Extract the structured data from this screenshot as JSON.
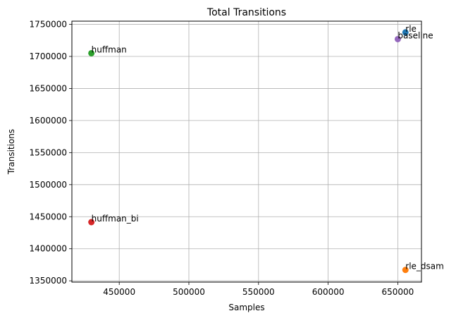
{
  "chart_data": {
    "type": "scatter",
    "title": "Total Transitions",
    "xlabel": "Samples",
    "ylabel": "Transitions",
    "xlim": [
      416000,
      667000
    ],
    "ylim": [
      1348000,
      1755000
    ],
    "xticks": [
      450000,
      500000,
      550000,
      600000,
      650000
    ],
    "yticks": [
      1350000,
      1400000,
      1450000,
      1500000,
      1550000,
      1600000,
      1650000,
      1700000,
      1750000
    ],
    "grid": true,
    "points": [
      {
        "label": "rle",
        "x": 655500,
        "y": 1737500,
        "color": "#1f77b4"
      },
      {
        "label": "rle_dsam",
        "x": 655500,
        "y": 1367000,
        "color": "#ff7f0e"
      },
      {
        "label": "huffman",
        "x": 430000,
        "y": 1705000,
        "color": "#2ca02c"
      },
      {
        "label": "huffman_bi",
        "x": 430000,
        "y": 1441500,
        "color": "#d62728"
      },
      {
        "label": "baseline",
        "x": 650000,
        "y": 1727000,
        "color": "#9467bd"
      }
    ]
  }
}
